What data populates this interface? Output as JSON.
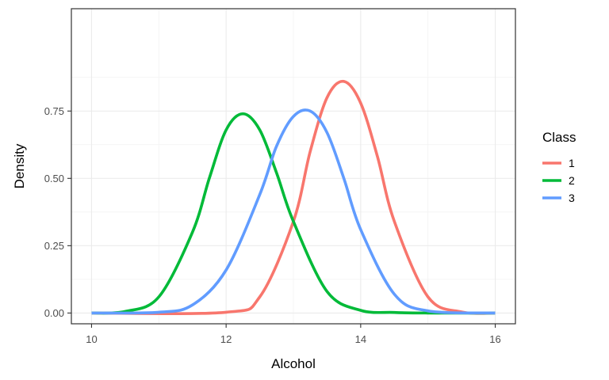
{
  "chart_data": {
    "type": "line",
    "xlabel": "Alcohol",
    "ylabel": "Density",
    "xlim": [
      9.7,
      16.3
    ],
    "ylim": [
      -0.04,
      1.13
    ],
    "x_ticks": [
      10,
      12,
      14,
      16
    ],
    "x_tick_labels": [
      "10",
      "12",
      "14",
      "16"
    ],
    "y_ticks": [
      0,
      0.25,
      0.5,
      0.75
    ],
    "y_tick_labels": [
      "0.00",
      "0.25",
      "0.50",
      "0.75"
    ],
    "grid": true,
    "legend": {
      "title": "Class",
      "position": "right",
      "labels": [
        "1",
        "2",
        "3"
      ]
    },
    "series": [
      {
        "name": "1",
        "color": "#F8766D",
        "x": [
          10,
          12,
          12.5,
          13,
          13.25,
          13.5,
          13.75,
          14,
          14.25,
          14.5,
          15,
          15.5,
          16
        ],
        "y": [
          0,
          0.003,
          0.06,
          0.34,
          0.6,
          0.8,
          0.86,
          0.78,
          0.58,
          0.34,
          0.06,
          0.004,
          0
        ]
      },
      {
        "name": "2",
        "color": "#00BA38",
        "x": [
          10,
          10.5,
          11,
          11.5,
          11.75,
          12,
          12.25,
          12.5,
          12.75,
          13,
          13.5,
          14,
          14.5,
          15,
          16
        ],
        "y": [
          0,
          0.006,
          0.06,
          0.3,
          0.5,
          0.68,
          0.74,
          0.68,
          0.52,
          0.34,
          0.08,
          0.01,
          0.002,
          0,
          0
        ]
      },
      {
        "name": "3",
        "color": "#619CFF",
        "x": [
          10,
          11,
          11.5,
          12,
          12.5,
          12.75,
          13,
          13.25,
          13.5,
          13.75,
          14,
          14.5,
          15,
          16
        ],
        "y": [
          0,
          0.003,
          0.03,
          0.16,
          0.44,
          0.62,
          0.73,
          0.75,
          0.67,
          0.5,
          0.31,
          0.07,
          0.008,
          0
        ]
      }
    ]
  }
}
